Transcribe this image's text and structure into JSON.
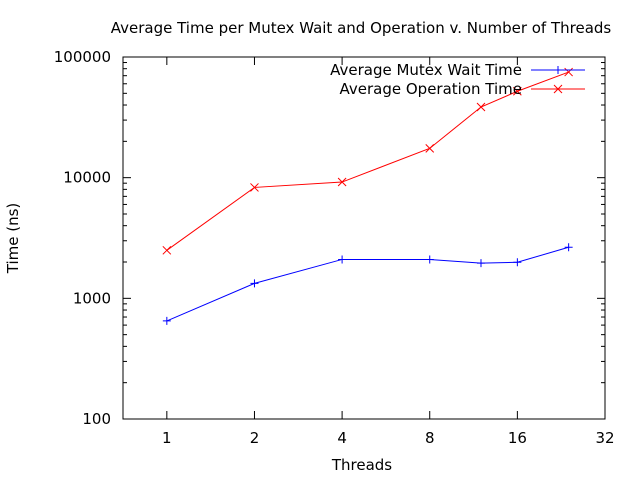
{
  "chart_data": {
    "type": "line",
    "title": "Average Time per Mutex Wait and Operation v. Number of Threads",
    "xlabel": "Threads",
    "ylabel": "Time (ns)",
    "x_scale": "log2",
    "y_scale": "log10",
    "xlim": [
      0.707,
      32
    ],
    "ylim": [
      100,
      100000
    ],
    "x_ticks": [
      1,
      2,
      4,
      8,
      16,
      32
    ],
    "x_tick_labels": [
      "1",
      "2",
      "4",
      "8",
      "16",
      "32"
    ],
    "y_ticks": [
      100,
      1000,
      10000,
      100000
    ],
    "y_tick_labels": [
      "100",
      "1000",
      "10000",
      "100000"
    ],
    "grid": false,
    "legend_position": "top-right",
    "series": [
      {
        "name": "Average Mutex Wait Time",
        "color": "#0000ff",
        "marker": "plus",
        "x": [
          1,
          2,
          4,
          8,
          12,
          16,
          24
        ],
        "y": [
          650,
          1330,
          2100,
          2100,
          1960,
          1990,
          2650
        ]
      },
      {
        "name": "Average Operation Time",
        "color": "#ff0000",
        "marker": "cross",
        "x": [
          1,
          2,
          4,
          8,
          12,
          16,
          24
        ],
        "y": [
          2500,
          8300,
          9200,
          17500,
          38500,
          52000,
          75000
        ]
      }
    ]
  }
}
